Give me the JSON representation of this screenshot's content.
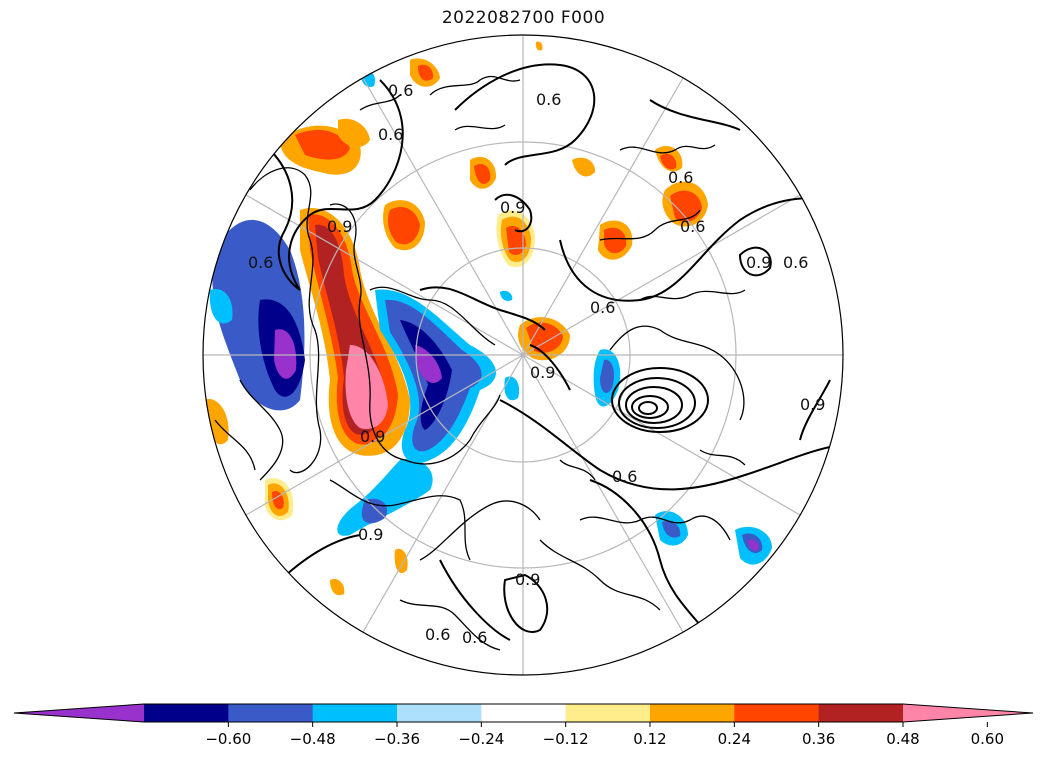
{
  "title": "2022082700 F000",
  "colorbar": {
    "colors": [
      "#9932CC",
      "#00008B",
      "#3A5BC7",
      "#00BFFF",
      "#ADE0FA",
      "#FFFFFF",
      "#FFEC8B",
      "#FFA500",
      "#FF4500",
      "#B22222",
      "#FF85A8"
    ],
    "ticks": [
      "−0.60",
      "−0.48",
      "−0.36",
      "−0.24",
      "−0.12",
      "0.12",
      "0.24",
      "0.36",
      "0.48",
      "0.60"
    ]
  },
  "contour_labels": [
    "0.6",
    "0.6",
    "0.6",
    "0.6",
    "0.6",
    "0.6",
    "0.6",
    "0.6",
    "0.6",
    "0.9",
    "0.9",
    "0.9",
    "0.9",
    "0.9",
    "0.9",
    "0.9",
    "0.9",
    "0.6",
    "0.6"
  ]
}
